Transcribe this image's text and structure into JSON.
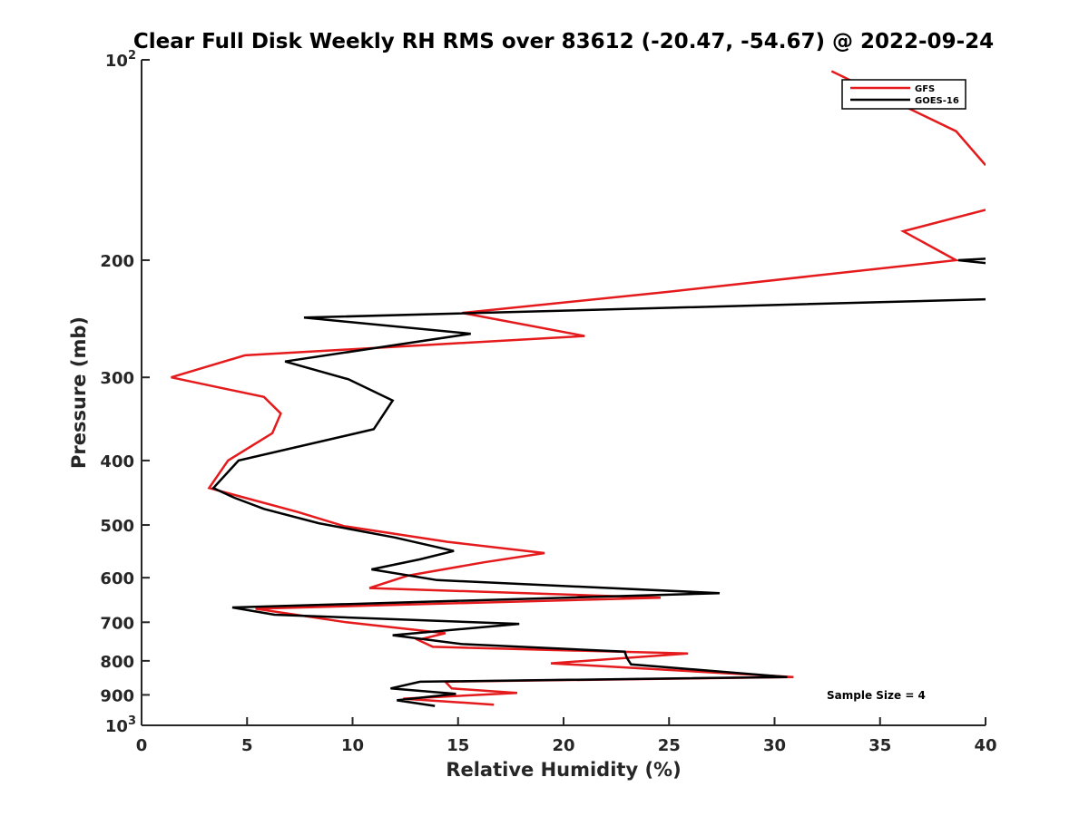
{
  "chart_data": {
    "type": "line",
    "title": "Clear Full Disk Weekly RH RMS over 83612 (-20.47, -54.67) @ 2022-09-24",
    "xlabel": "Relative Humidity (%)",
    "ylabel": "Pressure (mb)",
    "xlim": [
      0,
      40
    ],
    "ylim": [
      100,
      1000
    ],
    "yscale": "log",
    "y_reversed": true,
    "grid": false,
    "legend_position": "top-right",
    "x_ticks": [
      0,
      5,
      10,
      15,
      20,
      25,
      30,
      35,
      40
    ],
    "y_ticks": [
      {
        "value": 100,
        "label": "10",
        "sup": "2"
      },
      {
        "value": 200,
        "label": "200",
        "sup": ""
      },
      {
        "value": 300,
        "label": "300",
        "sup": ""
      },
      {
        "value": 400,
        "label": "400",
        "sup": ""
      },
      {
        "value": 500,
        "label": "500",
        "sup": ""
      },
      {
        "value": 600,
        "label": "600",
        "sup": ""
      },
      {
        "value": 700,
        "label": "700",
        "sup": ""
      },
      {
        "value": 800,
        "label": "800",
        "sup": ""
      },
      {
        "value": 900,
        "label": "900",
        "sup": ""
      },
      {
        "value": 1000,
        "label": "10",
        "sup": "3"
      }
    ],
    "annotation": "Sample Size = 4",
    "series": [
      {
        "name": "GFS",
        "color": "#e41a1c",
        "points": [
          [
            16.7,
            931
          ],
          [
            12.4,
            912
          ],
          [
            17.8,
            894
          ],
          [
            14.7,
            880
          ],
          [
            14.4,
            860
          ],
          [
            30.9,
            846
          ],
          [
            19.4,
            807
          ],
          [
            25.9,
            780
          ],
          [
            13.8,
            762
          ],
          [
            13.1,
            744
          ],
          [
            14.4,
            727
          ],
          [
            9.7,
            700
          ],
          [
            5.4,
            668
          ],
          [
            24.6,
            643
          ],
          [
            10.8,
            622
          ],
          [
            12.6,
            596
          ],
          [
            16.2,
            569
          ],
          [
            19.1,
            551
          ],
          [
            14.5,
            530
          ],
          [
            9.6,
            502
          ],
          [
            7.4,
            478
          ],
          [
            4.9,
            455
          ],
          [
            3.2,
            440
          ],
          [
            4.1,
            400
          ],
          [
            6.2,
            364
          ],
          [
            6.6,
            340
          ],
          [
            5.8,
            321
          ],
          [
            1.4,
            300
          ],
          [
            4.9,
            278
          ],
          [
            21.0,
            260
          ],
          [
            15.2,
            240
          ],
          [
            25.0,
            223
          ],
          [
            38.6,
            200
          ],
          [
            36.1,
            181
          ],
          [
            40.0,
            168
          ],
          null,
          [
            40.0,
            144
          ],
          [
            38.6,
            128
          ],
          [
            32.7,
            104
          ]
        ]
      },
      {
        "name": "GOES-16",
        "color": "#000000",
        "points": [
          [
            13.9,
            935
          ],
          [
            12.1,
            917
          ],
          [
            14.9,
            897
          ],
          [
            11.8,
            880
          ],
          [
            13.2,
            860
          ],
          [
            30.6,
            846
          ],
          [
            23.2,
            810
          ],
          [
            23.0,
            792
          ],
          [
            22.9,
            775
          ],
          [
            15.2,
            755
          ],
          [
            11.9,
            732
          ],
          [
            17.9,
            704
          ],
          [
            6.3,
            682
          ],
          [
            4.3,
            665
          ],
          [
            27.4,
            633
          ],
          [
            14.0,
            605
          ],
          [
            10.9,
            583
          ],
          [
            13.2,
            563
          ],
          [
            14.8,
            547
          ],
          [
            12.0,
            522
          ],
          [
            8.4,
            497
          ],
          [
            5.8,
            473
          ],
          [
            4.4,
            455
          ],
          [
            3.4,
            440
          ],
          [
            4.6,
            400
          ],
          [
            11.0,
            359
          ],
          [
            11.9,
            325
          ],
          [
            9.8,
            302
          ],
          [
            6.8,
            284
          ],
          [
            15.6,
            258
          ],
          [
            7.7,
            244
          ],
          [
            40.0,
            229
          ],
          null,
          [
            40.0,
            202
          ],
          [
            38.7,
            200
          ],
          [
            40.0,
            199
          ]
        ]
      }
    ]
  }
}
